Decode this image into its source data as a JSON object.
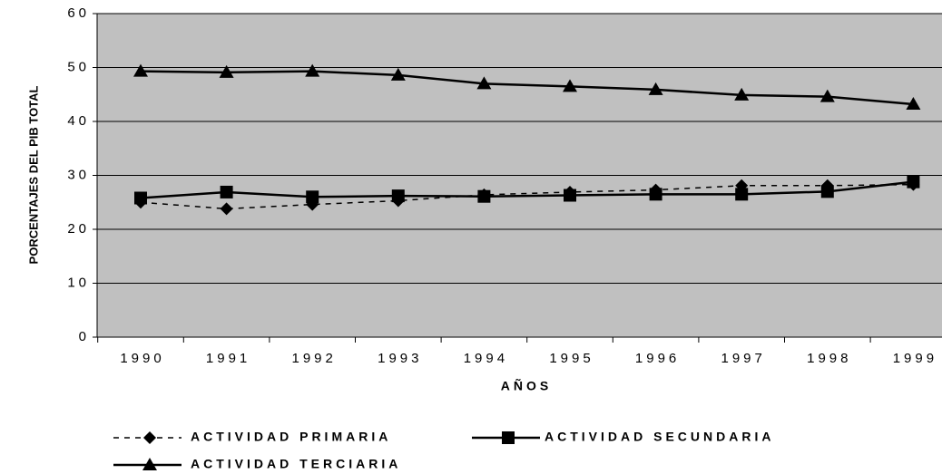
{
  "chart_data": {
    "type": "line",
    "xlabel": "AÑOS",
    "ylabel": "PORCENTAJES DEL PIB TOTAL",
    "categories": [
      "1990",
      "1991",
      "1992",
      "1993",
      "1994",
      "1995",
      "1996",
      "1997",
      "1998",
      "1999"
    ],
    "series": [
      {
        "name": "ACTIVIDAD PRIMARIA",
        "color": "#000000",
        "marker": "diamond",
        "dashed": true,
        "values": [
          25.0,
          23.8,
          24.6,
          25.3,
          26.4,
          26.9,
          27.3,
          28.1,
          28.1,
          28.3
        ]
      },
      {
        "name": "ACTIVIDAD SECUNDARIA",
        "color": "#000000",
        "marker": "square",
        "dashed": false,
        "values": [
          25.8,
          26.9,
          26.0,
          26.2,
          26.1,
          26.3,
          26.5,
          26.5,
          27.0,
          28.8
        ]
      },
      {
        "name": "ACTIVIDAD TERCIARIA",
        "color": "#000000",
        "marker": "triangle",
        "dashed": false,
        "values": [
          49.3,
          49.1,
          49.3,
          48.6,
          47.0,
          46.5,
          45.9,
          44.9,
          44.6,
          43.2
        ]
      }
    ],
    "ylim": [
      0,
      60
    ],
    "yticks": [
      0,
      10,
      20,
      30,
      40,
      50,
      60
    ],
    "grid": true,
    "plot_background": "#c0c0c0",
    "legend": "bottom"
  }
}
